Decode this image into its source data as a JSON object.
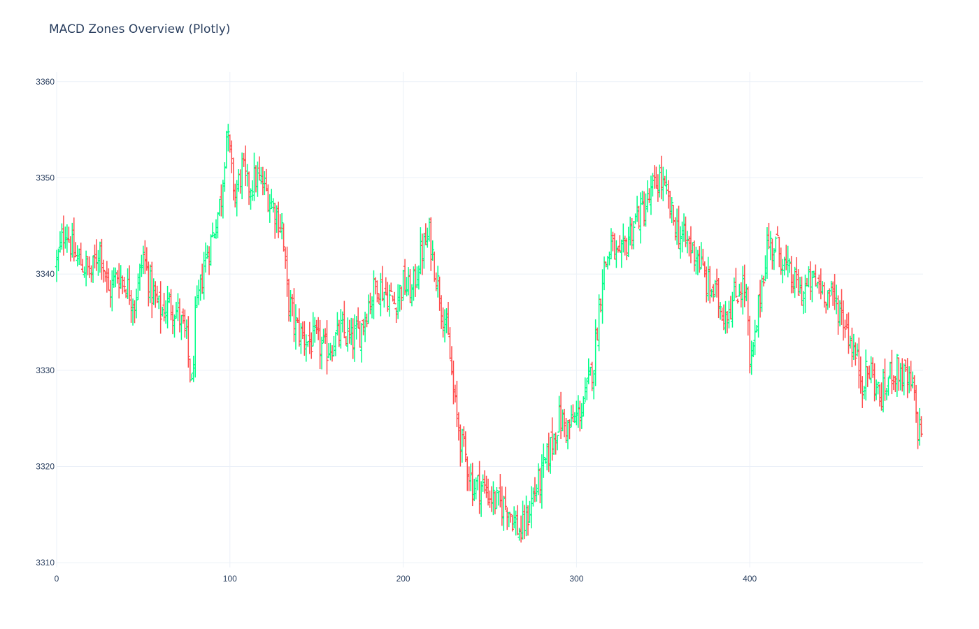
{
  "chart_data": {
    "type": "ohlc",
    "title": "MACD Zones Overview (Plotly)",
    "xlabel": "",
    "ylabel": "",
    "xlim": [
      0,
      500
    ],
    "ylim": [
      3309.5,
      3361
    ],
    "xticks": [
      0,
      100,
      200,
      300,
      400
    ],
    "yticks": [
      3310,
      3320,
      3330,
      3340,
      3350,
      3360
    ],
    "grid": true,
    "legend": "none",
    "colors": {
      "increasing": "#00ff88",
      "decreasing": "#ff4d4d",
      "grid": "#ebf0f8",
      "text": "#2a3f5f"
    },
    "n_bars": 500,
    "close_anchors": [
      [
        0,
        3341
      ],
      [
        5,
        3345
      ],
      [
        10,
        3342
      ],
      [
        15,
        3341
      ],
      [
        20,
        3340
      ],
      [
        25,
        3343
      ],
      [
        30,
        3338
      ],
      [
        35,
        3340
      ],
      [
        40,
        3339
      ],
      [
        45,
        3337
      ],
      [
        50,
        3342
      ],
      [
        55,
        3338
      ],
      [
        60,
        3336
      ],
      [
        65,
        3337
      ],
      [
        70,
        3336
      ],
      [
        75,
        3333
      ],
      [
        78,
        3328
      ],
      [
        80,
        3335
      ],
      [
        85,
        3341
      ],
      [
        90,
        3344
      ],
      [
        95,
        3348
      ],
      [
        98,
        3355
      ],
      [
        100,
        3352
      ],
      [
        103,
        3348
      ],
      [
        107,
        3351
      ],
      [
        110,
        3349
      ],
      [
        115,
        3350
      ],
      [
        120,
        3349
      ],
      [
        125,
        3347
      ],
      [
        130,
        3345
      ],
      [
        133,
        3338
      ],
      [
        137,
        3335
      ],
      [
        140,
        3334
      ],
      [
        145,
        3333
      ],
      [
        150,
        3333
      ],
      [
        155,
        3332
      ],
      [
        160,
        3333
      ],
      [
        165,
        3334
      ],
      [
        170,
        3333
      ],
      [
        175,
        3334
      ],
      [
        180,
        3337
      ],
      [
        185,
        3339
      ],
      [
        190,
        3338
      ],
      [
        195,
        3337
      ],
      [
        200,
        3339
      ],
      [
        205,
        3338
      ],
      [
        210,
        3342
      ],
      [
        215,
        3344
      ],
      [
        218,
        3341
      ],
      [
        222,
        3337
      ],
      [
        226,
        3333
      ],
      [
        230,
        3326
      ],
      [
        233,
        3323
      ],
      [
        236,
        3321
      ],
      [
        240,
        3318
      ],
      [
        245,
        3318
      ],
      [
        250,
        3317
      ],
      [
        255,
        3316
      ],
      [
        260,
        3316
      ],
      [
        265,
        3314
      ],
      [
        268,
        3313
      ],
      [
        272,
        3315
      ],
      [
        275,
        3317
      ],
      [
        280,
        3319
      ],
      [
        285,
        3322
      ],
      [
        290,
        3325
      ],
      [
        295,
        3324
      ],
      [
        300,
        3325
      ],
      [
        305,
        3327
      ],
      [
        310,
        3331
      ],
      [
        315,
        3340
      ],
      [
        320,
        3343
      ],
      [
        325,
        3341
      ],
      [
        330,
        3344
      ],
      [
        335,
        3346
      ],
      [
        340,
        3347
      ],
      [
        345,
        3349
      ],
      [
        348,
        3350
      ],
      [
        352,
        3348
      ],
      [
        355,
        3346
      ],
      [
        360,
        3344
      ],
      [
        365,
        3343
      ],
      [
        370,
        3342
      ],
      [
        375,
        3339
      ],
      [
        380,
        3338
      ],
      [
        385,
        3336
      ],
      [
        390,
        3337
      ],
      [
        395,
        3339
      ],
      [
        398,
        3338
      ],
      [
        400,
        3330
      ],
      [
        403,
        3333
      ],
      [
        406,
        3338
      ],
      [
        410,
        3343
      ],
      [
        415,
        3343
      ],
      [
        418,
        3342
      ],
      [
        422,
        3340
      ],
      [
        426,
        3339
      ],
      [
        430,
        3338
      ],
      [
        435,
        3339
      ],
      [
        440,
        3339
      ],
      [
        445,
        3338
      ],
      [
        450,
        3337
      ],
      [
        455,
        3335
      ],
      [
        460,
        3332
      ],
      [
        465,
        3329
      ],
      [
        470,
        3330
      ],
      [
        475,
        3327
      ],
      [
        478,
        3328
      ],
      [
        482,
        3330
      ],
      [
        486,
        3330
      ],
      [
        490,
        3329
      ],
      [
        494,
        3328
      ],
      [
        497,
        3324
      ],
      [
        499,
        3324
      ]
    ]
  }
}
